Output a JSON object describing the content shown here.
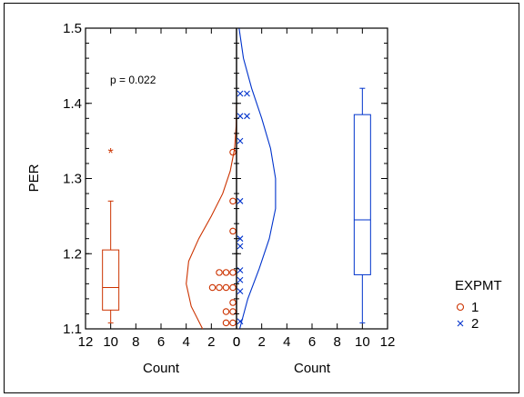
{
  "chart_data": {
    "type": "scatter",
    "subtype": "dual-panel back-to-back dot histogram with box plots and density curves",
    "ylabel": "PER",
    "ylim": [
      1.1,
      1.5
    ],
    "y_ticks": [
      "1.1",
      "1.2",
      "1.3",
      "1.4",
      "1.5"
    ],
    "xlabel_left": "Count",
    "xlabel_right": "Count",
    "x_ticks_left": [
      "12",
      "10",
      "8",
      "6",
      "4",
      "2",
      "0"
    ],
    "x_ticks_right": [
      "0",
      "2",
      "4",
      "6",
      "8",
      "10",
      "12"
    ],
    "xlim": [
      0,
      12
    ],
    "annotation": "p = 0.022",
    "legend": {
      "title": "EXPMT",
      "placement": "right"
    },
    "series": [
      {
        "name": "1",
        "color": "#cc3300",
        "marker": "circle",
        "side": "left",
        "points": [
          {
            "y": 1.335,
            "count": 1
          },
          {
            "y": 1.27,
            "count": 1
          },
          {
            "y": 1.23,
            "count": 1
          },
          {
            "y": 1.175,
            "count": 3
          },
          {
            "y": 1.155,
            "count": 4
          },
          {
            "y": 1.135,
            "count": 1
          },
          {
            "y": 1.123,
            "count": 2
          },
          {
            "y": 1.108,
            "count": 2
          }
        ],
        "box": {
          "x_center": 10,
          "q1": 1.125,
          "median": 1.155,
          "q3": 1.205,
          "whisker_low": 1.108,
          "whisker_high": 1.27,
          "outliers": [
            1.337
          ]
        },
        "density": [
          {
            "y": 1.1,
            "x": 2.7
          },
          {
            "y": 1.13,
            "x": 3.6
          },
          {
            "y": 1.16,
            "x": 4.0
          },
          {
            "y": 1.19,
            "x": 3.8
          },
          {
            "y": 1.22,
            "x": 3.0
          },
          {
            "y": 1.25,
            "x": 2.0
          },
          {
            "y": 1.28,
            "x": 1.1
          },
          {
            "y": 1.31,
            "x": 0.5
          },
          {
            "y": 1.34,
            "x": 0.15
          },
          {
            "y": 1.37,
            "x": 0.03
          },
          {
            "y": 1.4,
            "x": 0.0
          }
        ]
      },
      {
        "name": "2",
        "color": "#0033cc",
        "marker": "x",
        "side": "right",
        "points": [
          {
            "y": 1.413,
            "count": 2
          },
          {
            "y": 1.383,
            "count": 2
          },
          {
            "y": 1.35,
            "count": 1
          },
          {
            "y": 1.27,
            "count": 1
          },
          {
            "y": 1.22,
            "count": 1
          },
          {
            "y": 1.21,
            "count": 1
          },
          {
            "y": 1.178,
            "count": 1
          },
          {
            "y": 1.165,
            "count": 1
          },
          {
            "y": 1.15,
            "count": 1
          },
          {
            "y": 1.11,
            "count": 1
          }
        ],
        "box": {
          "x_center": 10,
          "q1": 1.172,
          "median": 1.245,
          "q3": 1.385,
          "whisker_low": 1.108,
          "whisker_high": 1.42,
          "outliers": []
        },
        "density": [
          {
            "y": 1.1,
            "x": 0.25
          },
          {
            "y": 1.14,
            "x": 0.9
          },
          {
            "y": 1.18,
            "x": 1.8
          },
          {
            "y": 1.22,
            "x": 2.6
          },
          {
            "y": 1.26,
            "x": 3.1
          },
          {
            "y": 1.3,
            "x": 3.1
          },
          {
            "y": 1.34,
            "x": 2.7
          },
          {
            "y": 1.38,
            "x": 2.0
          },
          {
            "y": 1.42,
            "x": 1.2
          },
          {
            "y": 1.46,
            "x": 0.55
          },
          {
            "y": 1.5,
            "x": 0.2
          }
        ]
      }
    ]
  }
}
